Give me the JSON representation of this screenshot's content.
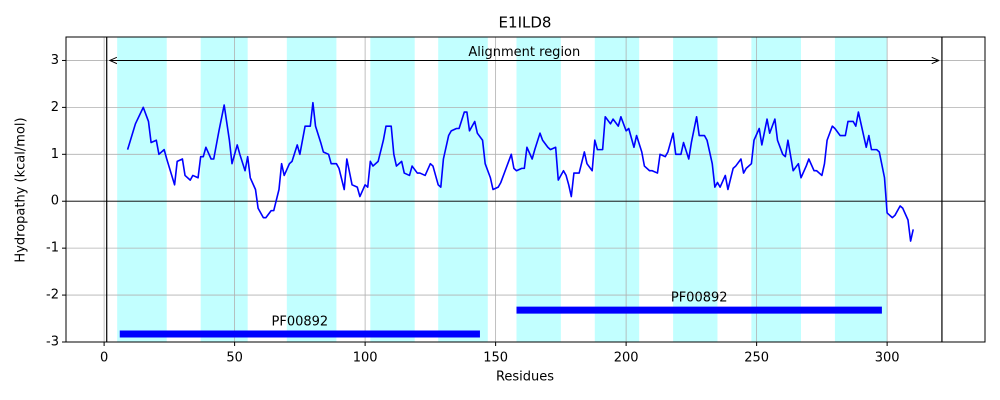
{
  "chart_data": {
    "type": "line",
    "title": "E1ILD8",
    "x_label": "Residues",
    "y_label": "Hydropathy (kcal/mol)",
    "xlim": [
      -14.6,
      337.5
    ],
    "ylim": [
      -3,
      3.5
    ],
    "xticks": [
      0,
      50,
      100,
      150,
      200,
      250,
      300
    ],
    "yticks": [
      -3,
      -2,
      -1,
      0,
      1,
      2,
      3
    ],
    "grid": true,
    "color": "#0000ff",
    "x": [
      9,
      12,
      15,
      17,
      18,
      20,
      21,
      23,
      24,
      27,
      28,
      30,
      31,
      33,
      34,
      36,
      37,
      38,
      39,
      41,
      42,
      44,
      46,
      48,
      49,
      51,
      52,
      54,
      55,
      56,
      58,
      59,
      61,
      62,
      64,
      65,
      67,
      68,
      69,
      71,
      72,
      74,
      75,
      77,
      79,
      80,
      81,
      83,
      84,
      86,
      87,
      89,
      90,
      92,
      93,
      95,
      97,
      98,
      100,
      101,
      102,
      103,
      105,
      107,
      108,
      110,
      111,
      112,
      114,
      115,
      117,
      118,
      120,
      121,
      123,
      125,
      126,
      128,
      129,
      130,
      132,
      133,
      135,
      136,
      138,
      139,
      140,
      142,
      143,
      145,
      146,
      148,
      149,
      151,
      152,
      154,
      156,
      157,
      158,
      160,
      161,
      162,
      164,
      165,
      167,
      168,
      170,
      171,
      173,
      174,
      176,
      177,
      178,
      179,
      180,
      182,
      184,
      185,
      187,
      188,
      189,
      191,
      192,
      194,
      195,
      197,
      198,
      200,
      201,
      203,
      204,
      206,
      207,
      209,
      210,
      212,
      213,
      215,
      216,
      218,
      219,
      221,
      222,
      224,
      225,
      227,
      228,
      230,
      231,
      233,
      234,
      235,
      236,
      238,
      239,
      241,
      242,
      244,
      245,
      246,
      248,
      249,
      251,
      252,
      254,
      255,
      257,
      258,
      260,
      261,
      262,
      264,
      266,
      267,
      269,
      270,
      272,
      273,
      275,
      276,
      277,
      279,
      280,
      282,
      284,
      285,
      287,
      288,
      289,
      290,
      292,
      293,
      294,
      296,
      297,
      299,
      300,
      302,
      303,
      305,
      306,
      308,
      309,
      310
    ],
    "values": [
      1.1,
      1.65,
      2.0,
      1.7,
      1.25,
      1.3,
      1.0,
      1.1,
      0.9,
      0.35,
      0.85,
      0.9,
      0.55,
      0.45,
      0.55,
      0.5,
      0.95,
      0.95,
      1.15,
      0.9,
      0.9,
      1.5,
      2.05,
      1.3,
      0.8,
      1.2,
      1.0,
      0.65,
      0.95,
      0.5,
      0.25,
      -0.15,
      -0.35,
      -0.35,
      -0.2,
      -0.2,
      0.25,
      0.8,
      0.55,
      0.8,
      0.85,
      1.2,
      1.0,
      1.6,
      1.6,
      2.1,
      1.6,
      1.25,
      1.05,
      1.0,
      0.8,
      0.8,
      0.7,
      0.25,
      0.9,
      0.35,
      0.3,
      0.1,
      0.35,
      0.3,
      0.85,
      0.75,
      0.85,
      1.3,
      1.6,
      1.6,
      1.0,
      0.75,
      0.85,
      0.6,
      0.55,
      0.75,
      0.6,
      0.6,
      0.55,
      0.8,
      0.75,
      0.35,
      0.3,
      0.9,
      1.4,
      1.5,
      1.55,
      1.55,
      1.9,
      1.9,
      1.5,
      1.7,
      1.45,
      1.3,
      0.8,
      0.5,
      0.25,
      0.3,
      0.4,
      0.7,
      1.0,
      0.7,
      0.65,
      0.7,
      0.7,
      1.15,
      0.9,
      1.1,
      1.45,
      1.3,
      1.15,
      1.1,
      1.15,
      0.45,
      0.65,
      0.55,
      0.35,
      0.1,
      0.6,
      0.6,
      1.05,
      0.8,
      0.65,
      1.3,
      1.1,
      1.1,
      1.8,
      1.65,
      1.75,
      1.6,
      1.8,
      1.5,
      1.55,
      1.15,
      1.4,
      1.05,
      0.75,
      0.65,
      0.65,
      0.6,
      1.0,
      0.95,
      1.05,
      1.45,
      1.0,
      1.0,
      1.25,
      0.9,
      1.25,
      1.8,
      1.4,
      1.4,
      1.3,
      0.8,
      0.3,
      0.4,
      0.3,
      0.55,
      0.25,
      0.7,
      0.75,
      0.9,
      0.6,
      0.7,
      0.8,
      1.3,
      1.55,
      1.2,
      1.75,
      1.45,
      1.75,
      1.3,
      1.0,
      0.95,
      1.3,
      0.65,
      0.8,
      0.5,
      0.75,
      0.9,
      0.65,
      0.65,
      0.55,
      0.8,
      1.3,
      1.6,
      1.55,
      1.4,
      1.4,
      1.7,
      1.7,
      1.6,
      1.9,
      1.65,
      1.15,
      1.4,
      1.1,
      1.1,
      1.05,
      0.5,
      -0.25,
      -0.35,
      -0.3,
      -0.1,
      -0.15,
      -0.4,
      -0.85,
      -0.6
    ],
    "shaded_regions": [
      [
        5,
        24
      ],
      [
        37,
        55
      ],
      [
        70,
        89
      ],
      [
        102,
        119
      ],
      [
        128,
        147
      ],
      [
        158,
        175
      ],
      [
        188,
        205
      ],
      [
        218,
        235
      ],
      [
        248,
        267
      ],
      [
        280,
        300
      ]
    ],
    "shade_color": "#c2ffff",
    "alignment_region": {
      "label": "Alignment region",
      "start": 1,
      "end": 321
    },
    "domain_color": "#0000ff",
    "domains": [
      {
        "label": "PF00892",
        "start": 6,
        "end": 144,
        "y": -2.83
      },
      {
        "label": "PF00892",
        "start": 158,
        "end": 298,
        "y": -2.32
      }
    ]
  }
}
